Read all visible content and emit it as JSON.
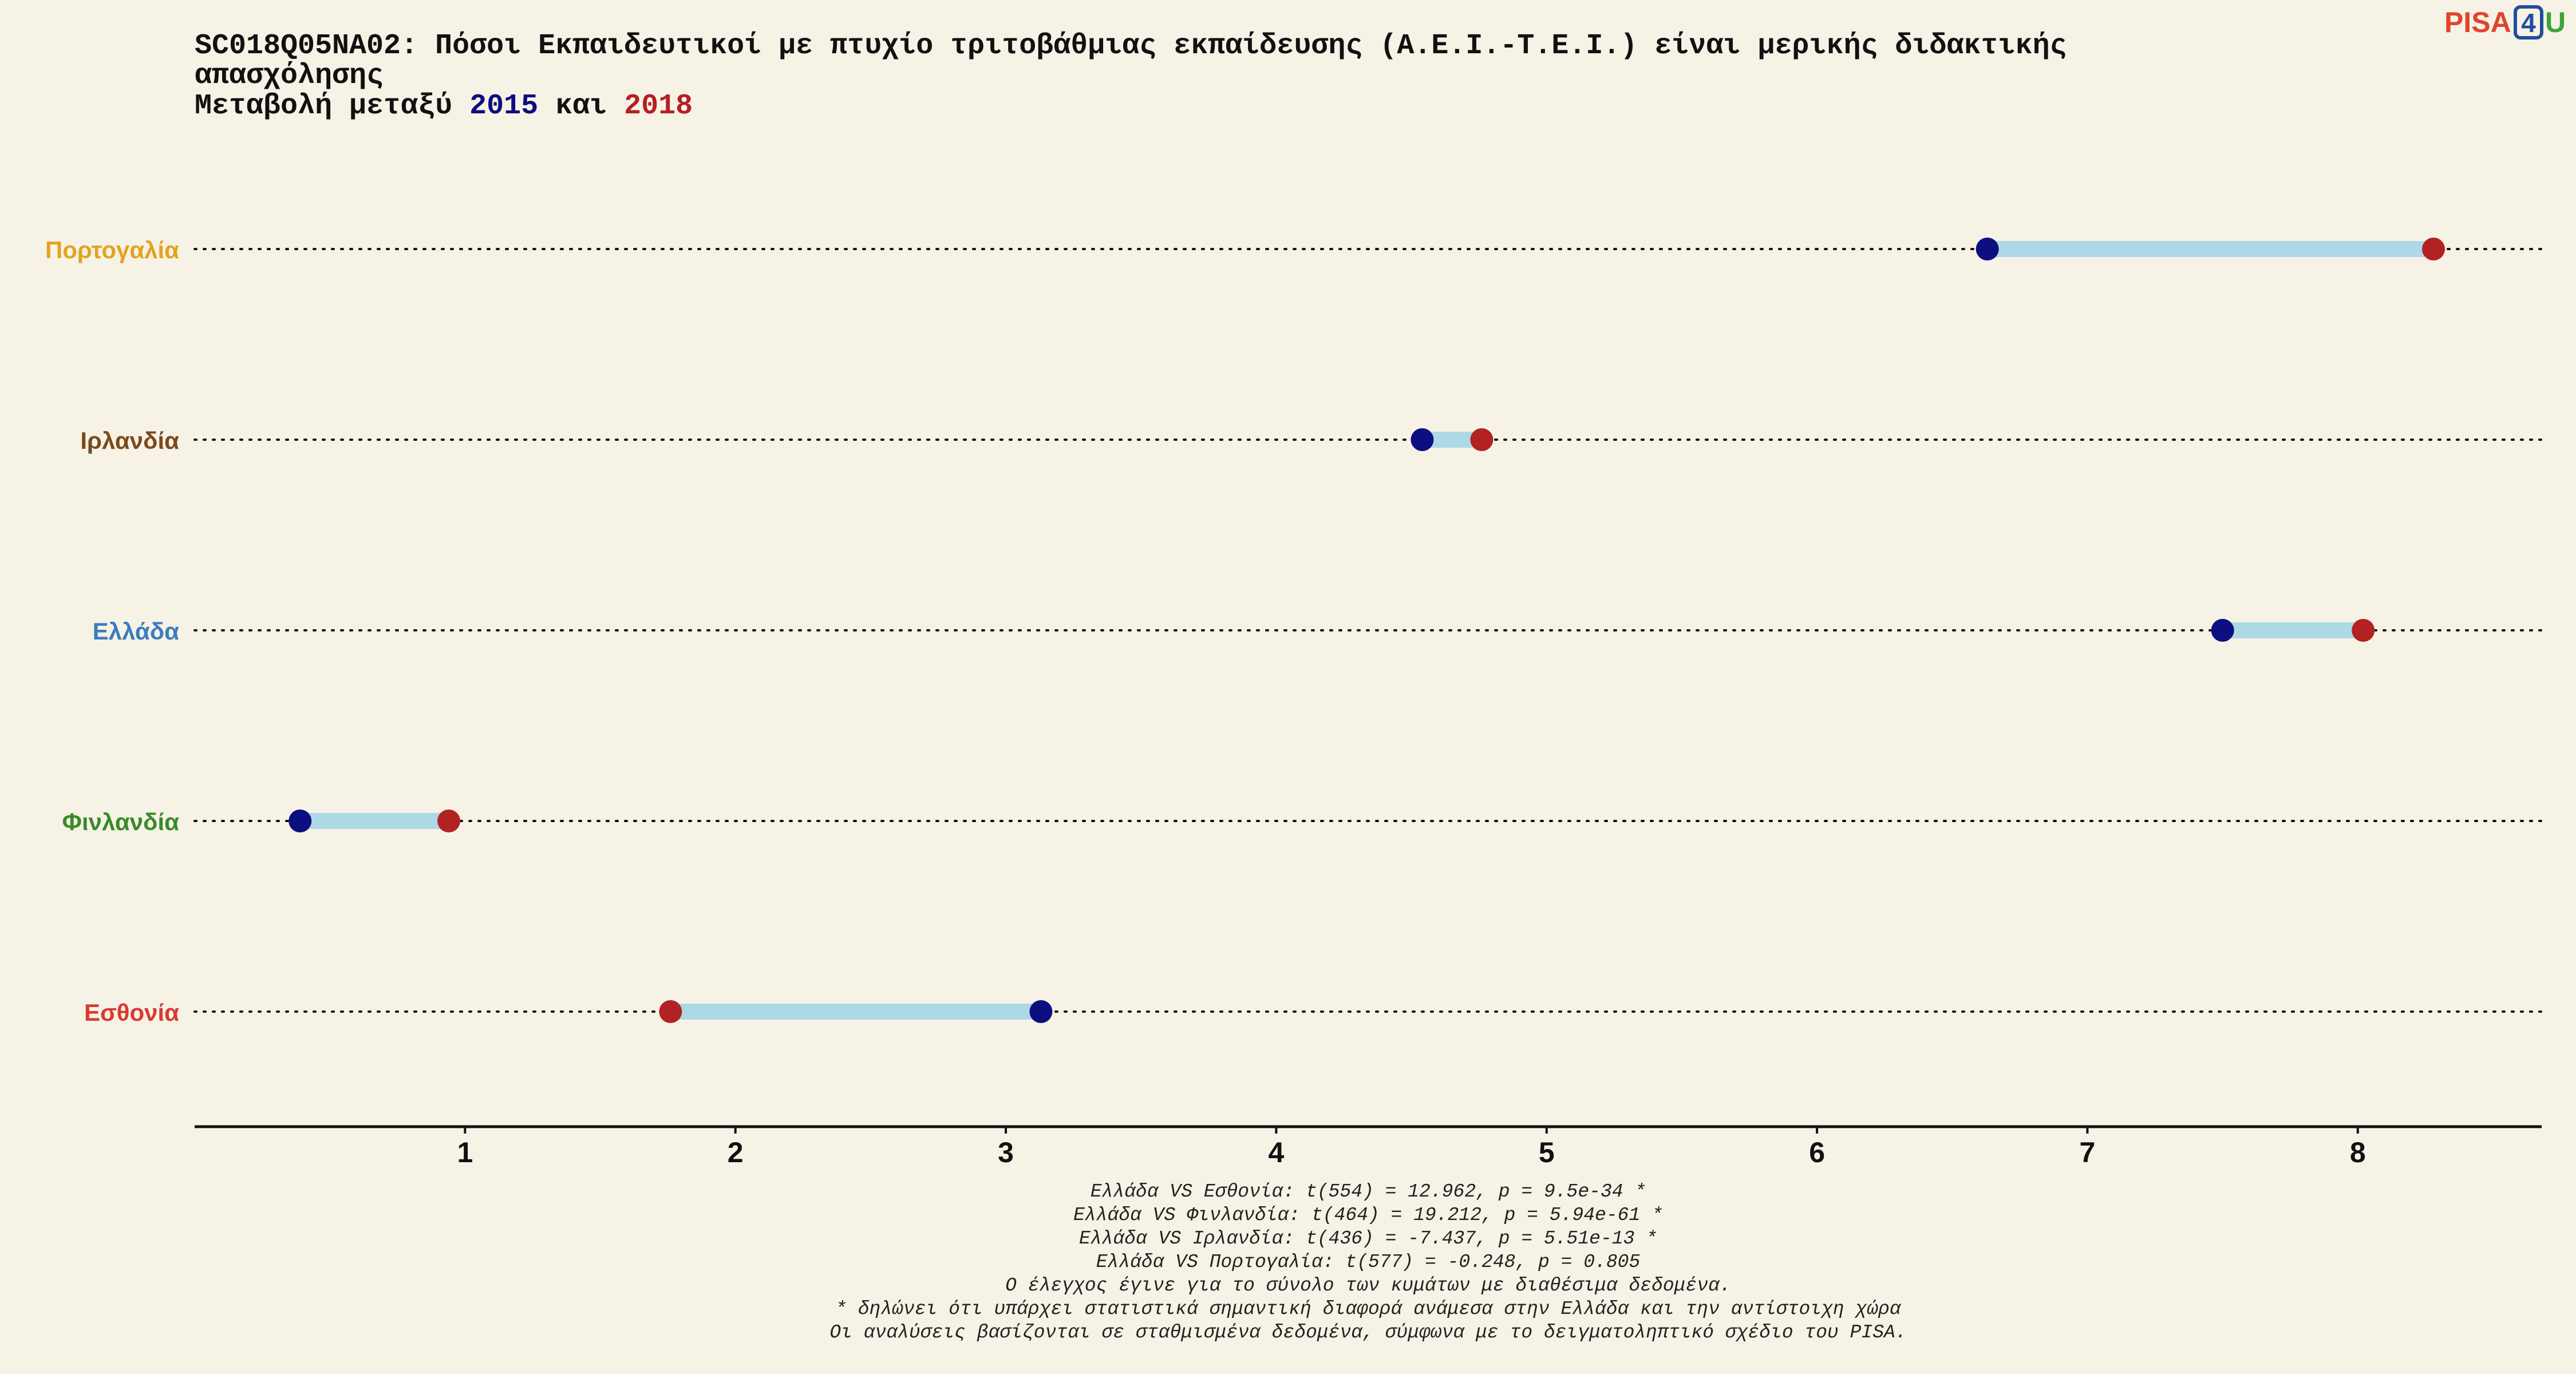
{
  "logo": {
    "pisa": "PISA",
    "four": "4",
    "u": "U",
    "colors": {
      "pisa": "#e0452b",
      "four": "#1f4e9c",
      "u": "#3aa33a"
    }
  },
  "chart_data": {
    "type": "dumbbell",
    "title_lines": [
      "SC018Q05NA02: Πόσοι Εκπαιδευτικοί με πτυχίο τριτοβάθμιας εκπαίδευσης (Α.Ε.Ι.-Τ.Ε.Ι.) είναι μερικής διδακτικής",
      "απασχόλησης"
    ],
    "subtitle": {
      "prefix": "Μεταβολή μεταξύ ",
      "year1": "2015",
      "middle": " και ",
      "year2": "2018"
    },
    "series": [
      {
        "name": "2015",
        "color": "#0b0f80"
      },
      {
        "name": "2018",
        "color": "#b22222"
      }
    ],
    "segment_color": "#add8e6",
    "xlim": [
      0,
      8.68
    ],
    "xticks": [
      1,
      2,
      3,
      4,
      5,
      6,
      7,
      8
    ],
    "grid": "dotted guide per row",
    "categories": [
      "Πορτογαλία",
      "Ιρλανδία",
      "Ελλάδα",
      "Φινλανδία",
      "Εσθονία"
    ],
    "category_colors": [
      "#e3a320",
      "#7b4a1b",
      "#3a7dbf",
      "#3a8a2a",
      "#d93a30"
    ],
    "values_2015": [
      6.63,
      4.54,
      7.5,
      0.39,
      3.13
    ],
    "values_2018": [
      8.28,
      4.76,
      8.02,
      0.94,
      1.76
    ],
    "footnotes": [
      "Ελλάδα VS Εσθονία: t(554) = 12.962, p = 9.5e-34 *",
      "Ελλάδα VS Φινλανδία: t(464) = 19.212, p = 5.94e-61 *",
      "Ελλάδα VS Ιρλανδία: t(436) = -7.437, p = 5.51e-13 *",
      "Ελλάδα VS Πορτογαλία: t(577) = -0.248, p = 0.805",
      "Ο έλεγχος έγινε για το σύνολο των κυμάτων με διαθέσιμα δεδομένα.",
      "* δηλώνει ότι υπάρχει στατιστικά σημαντική διαφορά ανάμεσα στην Ελλάδα και την αντίστοιχη χώρα",
      "Οι αναλύσεις βασίζονται σε σταθμισμένα δεδομένα, σύμφωνα με το δειγματοληπτικό σχέδιο του PISA."
    ]
  }
}
